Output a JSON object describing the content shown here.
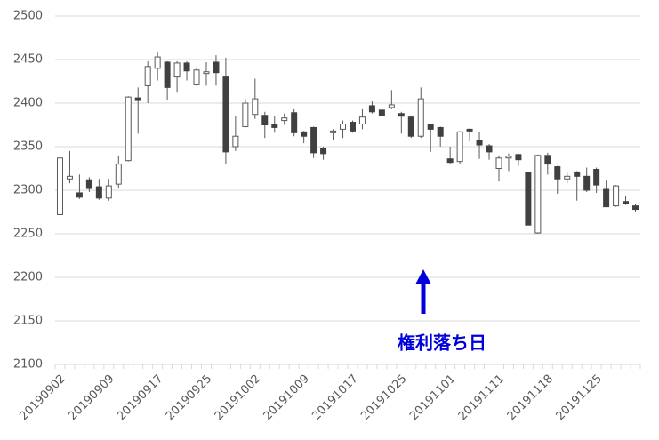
{
  "chart_data": {
    "type": "candlestick",
    "categories": [
      "20190902",
      null,
      null,
      null,
      null,
      "20190909",
      null,
      null,
      null,
      null,
      "20190917",
      null,
      null,
      null,
      null,
      "20190925",
      null,
      null,
      null,
      null,
      "20191002",
      null,
      null,
      null,
      null,
      "20191009",
      null,
      null,
      null,
      null,
      "20191017",
      null,
      null,
      null,
      null,
      "20191025",
      null,
      null,
      null,
      null,
      "20191101",
      null,
      null,
      null,
      null,
      "20191111",
      null,
      null,
      null,
      null,
      "20191118",
      null,
      null,
      null,
      null,
      "20191125",
      null,
      null,
      null,
      null
    ],
    "open": [
      2272,
      2313,
      2297,
      2312,
      2304,
      2291,
      2307,
      2334,
      2406,
      2420,
      2440,
      2447,
      2430,
      2446,
      2421,
      2434,
      2447,
      2430,
      2350,
      2373,
      2387,
      2386,
      2376,
      2380,
      2389,
      2367,
      2372,
      2348,
      2366,
      2370,
      2378,
      2376,
      2397,
      2392,
      2395,
      2388,
      2384,
      2362,
      2375,
      2372,
      2336,
      2333,
      2370,
      2357,
      2351,
      2325,
      2337,
      2341,
      2320,
      2251,
      2340,
      2327,
      2313,
      2321,
      2316,
      2324,
      2301,
      2282,
      2287,
      2282
    ],
    "high": [
      2340,
      2345,
      2318,
      2315,
      2313,
      2313,
      2340,
      2408,
      2418,
      2448,
      2458,
      2448,
      2448,
      2448,
      2440,
      2447,
      2455,
      2452,
      2385,
      2405,
      2428,
      2390,
      2385,
      2388,
      2393,
      2368,
      2373,
      2350,
      2370,
      2380,
      2380,
      2393,
      2402,
      2393,
      2415,
      2390,
      2386,
      2418,
      2376,
      2373,
      2350,
      2368,
      2371,
      2367,
      2353,
      2340,
      2342,
      2342,
      2320,
      2341,
      2343,
      2328,
      2320,
      2322,
      2326,
      2326,
      2311,
      2306,
      2293,
      2284
    ],
    "low": [
      2270,
      2308,
      2290,
      2298,
      2289,
      2288,
      2303,
      2333,
      2365,
      2400,
      2426,
      2403,
      2412,
      2426,
      2420,
      2420,
      2420,
      2330,
      2345,
      2372,
      2382,
      2360,
      2366,
      2375,
      2362,
      2354,
      2337,
      2335,
      2358,
      2360,
      2366,
      2370,
      2388,
      2385,
      2393,
      2365,
      2360,
      2360,
      2344,
      2350,
      2330,
      2330,
      2356,
      2336,
      2335,
      2310,
      2322,
      2328,
      2260,
      2250,
      2318,
      2296,
      2308,
      2288,
      2298,
      2297,
      2281,
      2281,
      2283,
      2275
    ],
    "close": [
      2337,
      2316,
      2292,
      2302,
      2291,
      2305,
      2330,
      2407,
      2403,
      2442,
      2453,
      2418,
      2446,
      2437,
      2438,
      2436,
      2435,
      2344,
      2362,
      2400,
      2405,
      2375,
      2372,
      2383,
      2366,
      2362,
      2343,
      2342,
      2368,
      2376,
      2368,
      2384,
      2390,
      2386,
      2398,
      2385,
      2362,
      2405,
      2370,
      2362,
      2332,
      2367,
      2368,
      2352,
      2344,
      2337,
      2339,
      2335,
      2260,
      2340,
      2330,
      2313,
      2316,
      2316,
      2300,
      2306,
      2281,
      2305,
      2285,
      2278
    ],
    "up_color": "#ffffff",
    "down_color": "#404040",
    "edge_color": "#595959",
    "ylim": [
      2100,
      2500
    ],
    "yticks": [
      2100,
      2150,
      2200,
      2250,
      2300,
      2350,
      2400,
      2450,
      2500
    ],
    "grid": true,
    "annotations": [
      {
        "text": "権利落ち日",
        "color": "#0000dd"
      }
    ]
  }
}
